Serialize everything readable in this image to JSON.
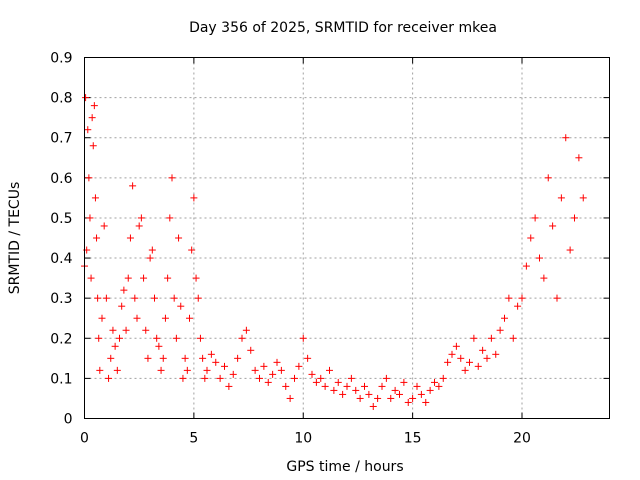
{
  "chart_data": {
    "type": "scatter",
    "title": "Day 356 of 2025, SRMTID for receiver mkea",
    "xlabel": "GPS time / hours",
    "ylabel": "SRMTID / TECUs",
    "xlim": [
      0,
      24
    ],
    "ylim": [
      0,
      0.9
    ],
    "xticks": [
      0,
      5,
      10,
      15,
      20
    ],
    "xtick_labels": [
      "0",
      "5",
      "10",
      "15",
      "20"
    ],
    "yticks": [
      0,
      0.1,
      0.2,
      0.3,
      0.4,
      0.5,
      0.6,
      0.7,
      0.8,
      0.9
    ],
    "ytick_labels": [
      "0",
      "0.1",
      "0.2",
      "0.3",
      "0.4",
      "0.5",
      "0.6",
      "0.7",
      "0.8",
      "0.9"
    ],
    "grid": true,
    "marker": "+",
    "color": "#ff0000",
    "series": [
      {
        "name": "SRMTID",
        "x": [
          0.0,
          0.05,
          0.1,
          0.15,
          0.2,
          0.25,
          0.3,
          0.35,
          0.4,
          0.45,
          0.5,
          0.55,
          0.6,
          0.65,
          0.7,
          0.8,
          0.9,
          1.0,
          1.1,
          1.2,
          1.3,
          1.4,
          1.5,
          1.6,
          1.7,
          1.8,
          1.9,
          2.0,
          2.1,
          2.2,
          2.3,
          2.4,
          2.5,
          2.6,
          2.7,
          2.8,
          2.9,
          3.0,
          3.1,
          3.2,
          3.3,
          3.4,
          3.5,
          3.6,
          3.7,
          3.8,
          3.9,
          4.0,
          4.1,
          4.2,
          4.3,
          4.4,
          4.5,
          4.6,
          4.7,
          4.8,
          4.9,
          5.0,
          5.1,
          5.2,
          5.3,
          5.4,
          5.5,
          5.6,
          5.8,
          6.0,
          6.2,
          6.4,
          6.6,
          6.8,
          7.0,
          7.2,
          7.4,
          7.6,
          7.8,
          8.0,
          8.2,
          8.4,
          8.6,
          8.8,
          9.0,
          9.2,
          9.4,
          9.6,
          9.8,
          10.0,
          10.2,
          10.4,
          10.6,
          10.8,
          11.0,
          11.2,
          11.4,
          11.6,
          11.8,
          12.0,
          12.2,
          12.4,
          12.6,
          12.8,
          13.0,
          13.2,
          13.4,
          13.6,
          13.8,
          14.0,
          14.2,
          14.4,
          14.6,
          14.8,
          15.0,
          15.2,
          15.4,
          15.6,
          15.8,
          16.0,
          16.2,
          16.4,
          16.6,
          16.8,
          17.0,
          17.2,
          17.4,
          17.6,
          17.8,
          18.0,
          18.2,
          18.4,
          18.6,
          18.8,
          19.0,
          19.2,
          19.4,
          19.6,
          19.8,
          20.0,
          20.2,
          20.4,
          20.6,
          20.8,
          21.0,
          21.2,
          21.4,
          21.6,
          21.8,
          22.0,
          22.2,
          22.4,
          22.6,
          22.8
        ],
        "y": [
          0.38,
          0.8,
          0.42,
          0.72,
          0.6,
          0.5,
          0.35,
          0.75,
          0.68,
          0.78,
          0.55,
          0.45,
          0.3,
          0.2,
          0.12,
          0.25,
          0.48,
          0.3,
          0.1,
          0.15,
          0.22,
          0.18,
          0.12,
          0.2,
          0.28,
          0.32,
          0.22,
          0.35,
          0.45,
          0.58,
          0.3,
          0.25,
          0.48,
          0.5,
          0.35,
          0.22,
          0.15,
          0.4,
          0.42,
          0.3,
          0.2,
          0.18,
          0.12,
          0.15,
          0.25,
          0.35,
          0.5,
          0.6,
          0.3,
          0.2,
          0.45,
          0.28,
          0.1,
          0.15,
          0.12,
          0.25,
          0.42,
          0.55,
          0.35,
          0.3,
          0.2,
          0.15,
          0.1,
          0.12,
          0.16,
          0.14,
          0.1,
          0.13,
          0.08,
          0.11,
          0.15,
          0.2,
          0.22,
          0.17,
          0.12,
          0.1,
          0.13,
          0.09,
          0.11,
          0.14,
          0.12,
          0.08,
          0.05,
          0.1,
          0.13,
          0.2,
          0.15,
          0.11,
          0.09,
          0.1,
          0.08,
          0.12,
          0.07,
          0.09,
          0.06,
          0.08,
          0.1,
          0.07,
          0.05,
          0.08,
          0.06,
          0.03,
          0.05,
          0.08,
          0.1,
          0.05,
          0.07,
          0.06,
          0.09,
          0.04,
          0.05,
          0.08,
          0.06,
          0.04,
          0.07,
          0.09,
          0.08,
          0.1,
          0.14,
          0.16,
          0.18,
          0.15,
          0.12,
          0.14,
          0.2,
          0.13,
          0.17,
          0.15,
          0.2,
          0.16,
          0.22,
          0.25,
          0.3,
          0.2,
          0.28,
          0.3,
          0.38,
          0.45,
          0.5,
          0.4,
          0.35,
          0.6,
          0.48,
          0.3,
          0.55,
          0.7,
          0.42,
          0.5,
          0.65,
          0.55
        ]
      }
    ]
  }
}
